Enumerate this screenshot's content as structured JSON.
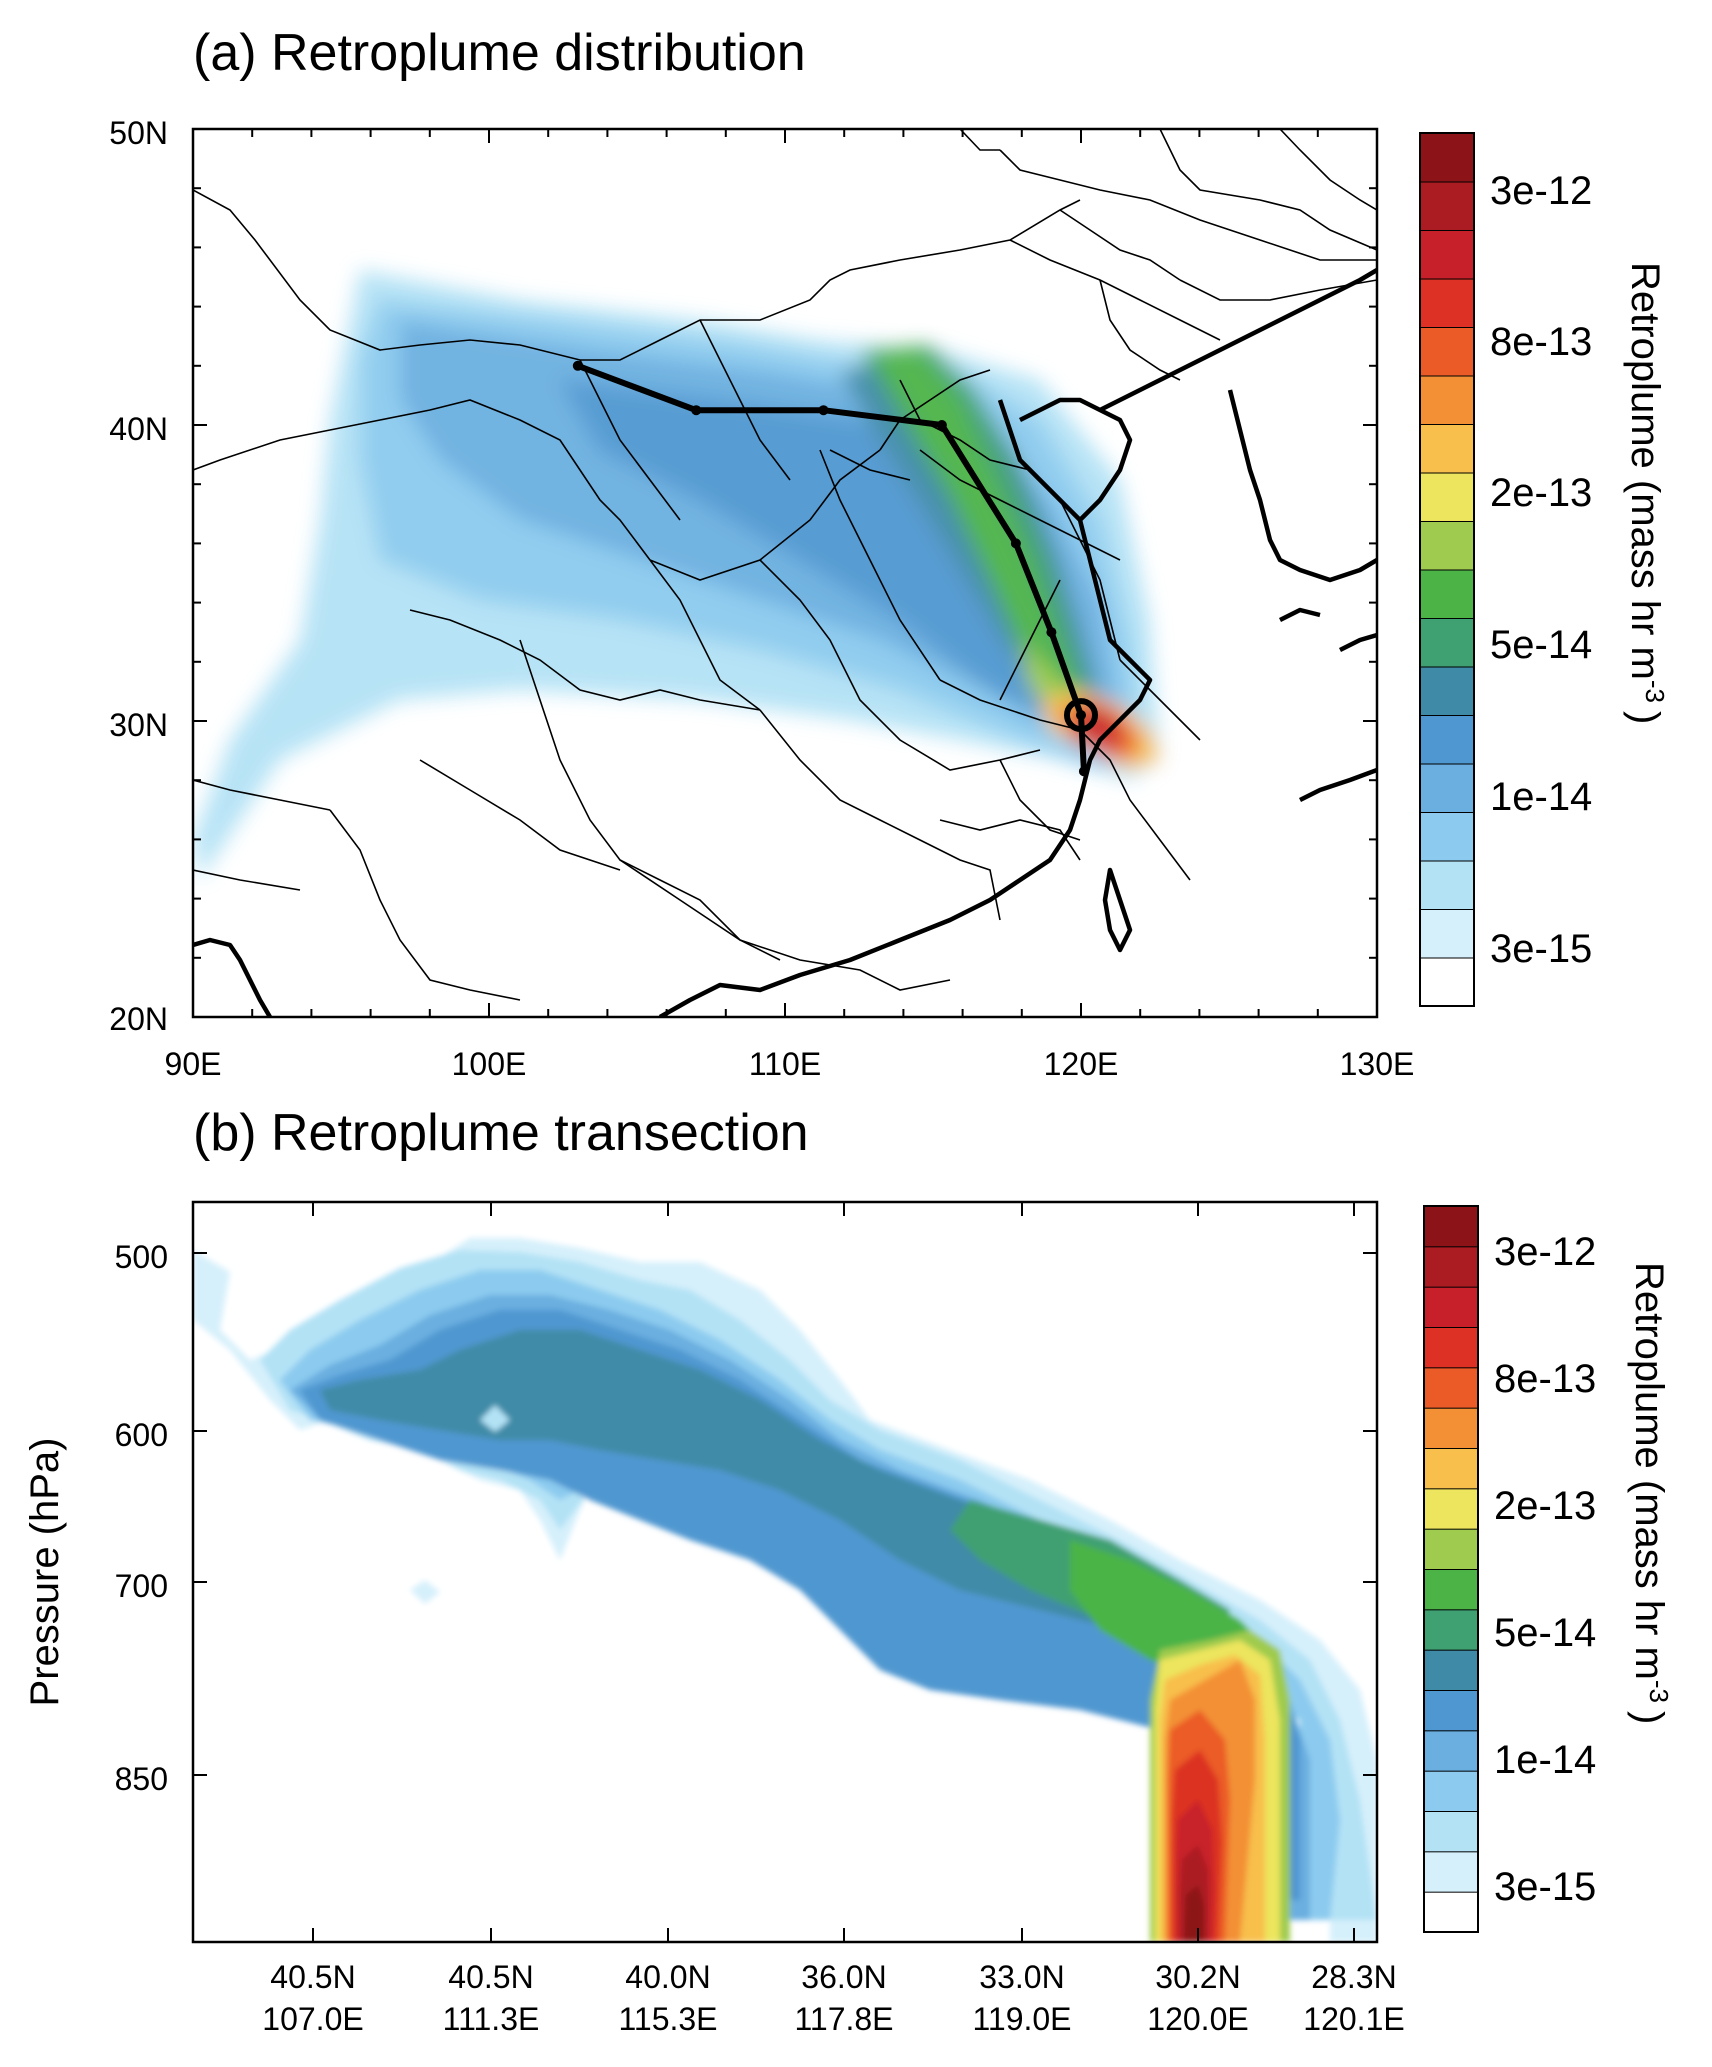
{
  "panel_a": {
    "title": "(a) Retroplume distribution",
    "x_ticks": [
      "90E",
      "100E",
      "110E",
      "120E",
      "130E"
    ],
    "y_ticks": [
      "50N",
      "40N",
      "30N",
      "20N"
    ],
    "x_range_lon": [
      90,
      130
    ],
    "y_range_lat": [
      20,
      50
    ],
    "colorbar_title": "Retroplume  (mass hr m",
    "colorbar_title_sup": "-3",
    "colorbar_title_end": ")",
    "colorbar_labels": [
      "3e-12",
      "8e-13",
      "2e-13",
      "5e-14",
      "1e-14",
      "3e-15"
    ],
    "trajectory": [
      [
        103.0,
        42.0
      ],
      [
        107.0,
        40.5
      ],
      [
        111.3,
        40.5
      ],
      [
        115.3,
        40.0
      ],
      [
        117.8,
        36.0
      ],
      [
        119.0,
        33.0
      ],
      [
        120.0,
        30.2
      ],
      [
        120.1,
        28.3
      ]
    ],
    "receptor": [
      120.0,
      30.2
    ]
  },
  "panel_b": {
    "title": "(b) Retroplume transection",
    "ylabel": "Pressure (hPa)",
    "y_ticks": [
      "500",
      "600",
      "700",
      "850"
    ],
    "x_tick_lat": [
      "40.5N",
      "40.5N",
      "40.0N",
      "36.0N",
      "33.0N",
      "30.2N",
      "28.3N"
    ],
    "x_tick_lon": [
      "107.0E",
      "111.3E",
      "115.3E",
      "117.8E",
      "119.0E",
      "120.0E",
      "120.1E"
    ],
    "colorbar_title": "Retroplume  (mass hr m",
    "colorbar_title_sup": "-3",
    "colorbar_title_end": ")",
    "colorbar_labels": [
      "3e-12",
      "8e-13",
      "2e-13",
      "5e-14",
      "1e-14",
      "3e-15"
    ]
  },
  "colors": {
    "levels": [
      "#ffffff",
      "#d6f0fb",
      "#b3e2f5",
      "#8ccbef",
      "#6aafe0",
      "#4f97d0",
      "#3f8ba7",
      "#3fa072",
      "#4cb447",
      "#9fcb4e",
      "#ece55d",
      "#f8bf4c",
      "#f39035",
      "#eb5b28",
      "#dc3124",
      "#c8202a",
      "#ab1c22",
      "#8c1419"
    ]
  },
  "chart_data": [
    {
      "type": "heatmap",
      "title": "(a) Retroplume distribution",
      "xlabel": "",
      "ylabel": "",
      "x_range": [
        90,
        130
      ],
      "y_range": [
        20,
        50
      ],
      "colorbar_labels": [
        "3e-15",
        "1e-14",
        "5e-14",
        "2e-13",
        "8e-13",
        "3e-12"
      ],
      "series": [
        {
          "name": "",
          "x": [
            103.0,
            107.0,
            111.3,
            115.3,
            117.8,
            119.0,
            120.0,
            120.1
          ],
          "y": [
            42.0,
            40.5,
            40.5,
            40.0,
            36.0,
            33.0,
            30.2,
            28.3
          ]
        }
      ]
    },
    {
      "type": "heatmap",
      "title": "(b) Retroplume transection",
      "xlabel": "",
      "ylabel": "Pressure (hPa)",
      "categories": [
        "40.5N 107.0E",
        "40.5N 111.3E",
        "40.0N 115.3E",
        "36.0N 117.8E",
        "33.0N 119.0E",
        "30.2N 120.0E",
        "28.3N 120.1E"
      ],
      "colorbar_labels": [
        "3e-15",
        "1e-14",
        "5e-14",
        "2e-13",
        "8e-13",
        "3e-12"
      ]
    }
  ]
}
